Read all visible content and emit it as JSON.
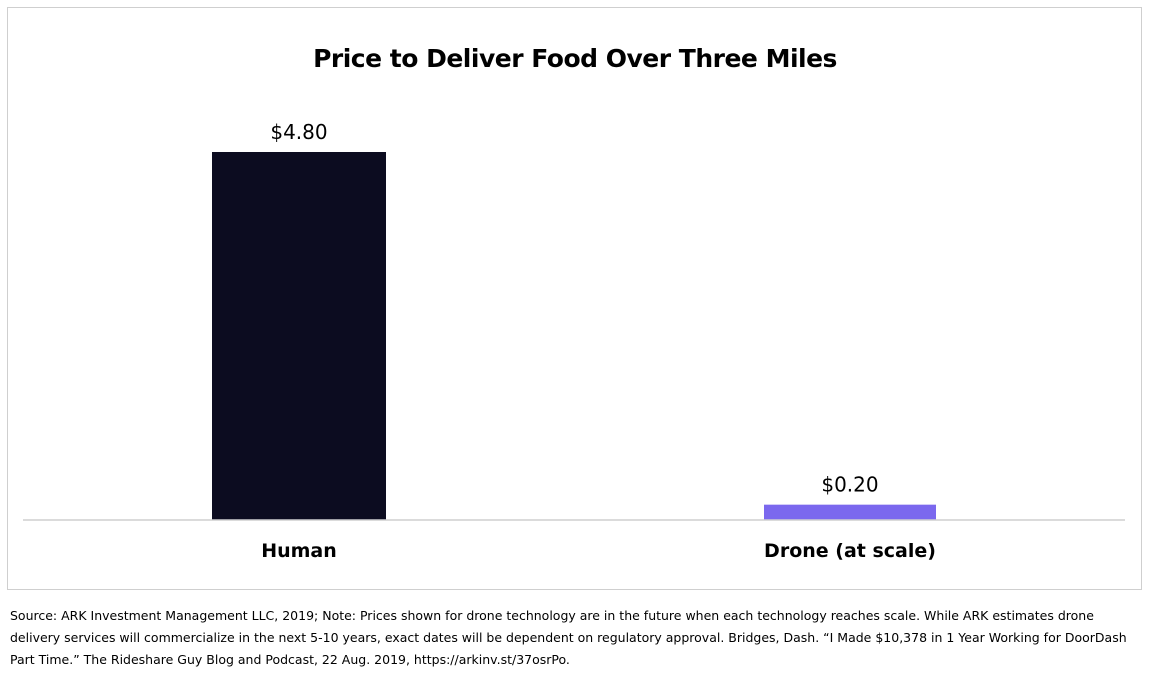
{
  "chart_data": {
    "type": "bar",
    "title": "Price to Deliver Food Over Three Miles",
    "xlabel": "",
    "ylabel": "",
    "categories": [
      "Human",
      "Drone (at scale)"
    ],
    "values": [
      4.8,
      0.2
    ],
    "data_labels": [
      "$4.80",
      "$0.20"
    ],
    "colors": [
      "#0c0c20",
      "#7b68ee"
    ],
    "ylim": [
      0,
      4.8
    ],
    "grid": false,
    "legend": "none"
  },
  "source_note": "Source: ARK Investment Management LLC, 2019; Note: Prices shown for drone technology are in the future when each technology reaches scale. While ARK estimates drone delivery services will commercialize in the next 5-10 years, exact dates will be dependent on regulatory approval. Bridges, Dash. “I Made $10,378 in 1 Year Working for DoorDash Part Time.” The Rideshare Guy Blog and Podcast, 22 Aug. 2019, https://arkinv.st/37osrPo."
}
